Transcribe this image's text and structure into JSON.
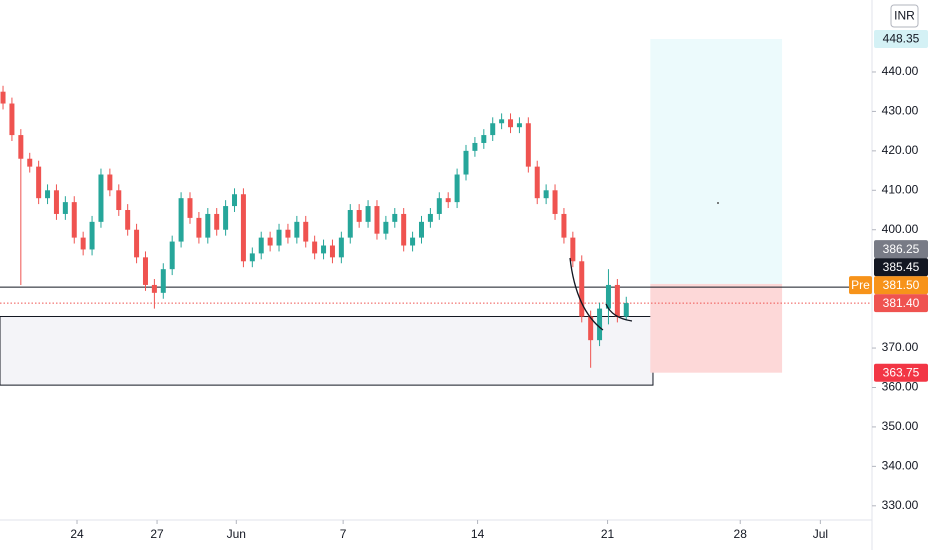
{
  "chart_data": {
    "type": "candlestick",
    "currency": "INR",
    "xlim": [
      -0.34,
      97.6
    ],
    "ylim": [
      326.4,
      458.25
    ],
    "xticks": [
      {
        "value": 8.31,
        "label": "24"
      },
      {
        "value": 17.3,
        "label": "27"
      },
      {
        "value": 26.2,
        "label": "Jun"
      },
      {
        "value": 38.2,
        "label": "7"
      },
      {
        "value": 53.3,
        "label": "14"
      },
      {
        "value": 67.9,
        "label": "21"
      },
      {
        "value": 82.8,
        "label": "28"
      },
      {
        "value": 91.8,
        "label": "Jul"
      }
    ],
    "yticks": [
      {
        "value": 330,
        "label": "330.00"
      },
      {
        "value": 340,
        "label": "340.00"
      },
      {
        "value": 350,
        "label": "350.00"
      },
      {
        "value": 360,
        "label": "360.00"
      },
      {
        "value": 370,
        "label": "370.00"
      },
      {
        "value": 400,
        "label": "400.00"
      },
      {
        "value": 410,
        "label": "410.00"
      },
      {
        "value": 420,
        "label": "420.00"
      },
      {
        "value": 430,
        "label": "430.00"
      },
      {
        "value": 440,
        "label": "440.00"
      }
    ],
    "up_color": "#26a69a",
    "down_color": "#ef5350",
    "open": [
      435,
      432,
      424,
      418,
      416,
      408,
      410,
      404,
      407,
      398,
      395,
      402,
      414,
      410,
      405,
      400,
      393,
      386,
      384,
      390,
      397,
      408,
      403,
      398,
      404,
      400,
      406,
      409,
      392,
      394,
      398,
      396,
      400,
      398,
      402,
      397,
      394,
      396,
      393,
      398,
      405,
      402,
      406,
      399,
      402,
      404,
      396,
      398,
      402,
      404,
      408,
      407,
      414,
      420,
      422,
      424,
      427,
      428,
      426,
      427,
      416,
      408,
      410,
      404,
      398,
      392,
      378,
      372,
      380,
      386,
      378
    ],
    "high": [
      436.5,
      433.5,
      425.5,
      419.5,
      417.5,
      411.5,
      411.5,
      408.5,
      408.5,
      399.5,
      403.5,
      415.5,
      415.5,
      411.5,
      406.5,
      401.5,
      394.5,
      387.5,
      391.5,
      398.5,
      409.5,
      409.5,
      404.5,
      405.5,
      405.5,
      407.5,
      410.5,
      410.5,
      395.5,
      399.5,
      399.5,
      401.5,
      401.5,
      403.5,
      403.5,
      398.5,
      397.5,
      397.5,
      399.5,
      406.5,
      406.5,
      407.5,
      407.5,
      403.5,
      405.5,
      405.5,
      399.5,
      403.5,
      405.5,
      409.5,
      409.5,
      415.5,
      421.5,
      423.5,
      425.5,
      428.5,
      429.5,
      429.5,
      428.5,
      428.5,
      417.5,
      411.5,
      411.5,
      405.5,
      399.5,
      393.5,
      379.5,
      381.5,
      390,
      387.5,
      383
    ],
    "low": [
      430.5,
      422.5,
      386,
      414.5,
      406.5,
      406.5,
      402.5,
      402.5,
      396.5,
      393.5,
      393.5,
      400.5,
      408.5,
      403.5,
      398.5,
      391.5,
      384.5,
      380,
      382.5,
      388.5,
      395.5,
      401.5,
      396.5,
      396.5,
      398.5,
      398.5,
      404.5,
      390.5,
      390.5,
      392.5,
      394.5,
      394.5,
      396.5,
      396.5,
      395.5,
      392.5,
      392.5,
      391.5,
      391.5,
      396.5,
      400.5,
      400.5,
      397.5,
      397.5,
      400.5,
      394.5,
      394.5,
      396.5,
      400.5,
      402.5,
      405.5,
      405.5,
      412.5,
      418.5,
      420.5,
      422.5,
      425.5,
      424.5,
      424.5,
      414.5,
      406.5,
      406.5,
      402.5,
      396.5,
      390.5,
      376.5,
      365,
      370.5,
      376,
      376.5,
      377
    ],
    "close": [
      432,
      424,
      418,
      416,
      408,
      410,
      404,
      407,
      398,
      395,
      402,
      414,
      410,
      405,
      400,
      393,
      386,
      384,
      390,
      397,
      408,
      403,
      398,
      404,
      400,
      406,
      409,
      392,
      394,
      398,
      396,
      400,
      398,
      402,
      397,
      394,
      396,
      393,
      398,
      405,
      402,
      406,
      399,
      402,
      404,
      396,
      398,
      402,
      404,
      408,
      407,
      414,
      420,
      422,
      424,
      427,
      428,
      426,
      427,
      416,
      408,
      410,
      404,
      398,
      392,
      378,
      372,
      380,
      386,
      378,
      381.4
    ],
    "box": {
      "x0": -0.34,
      "x1": 73.0,
      "top": 378,
      "bottom": 360.6,
      "fill": "#f4f4f8",
      "stroke": "#131722"
    },
    "position": {
      "x0": 72.7,
      "x1": 87.5,
      "target": 448.35,
      "entry": 386.25,
      "stop": 363.75,
      "profit_color": "#ecfafc",
      "loss_color": "#fdd8d8"
    },
    "lines": [
      {
        "value": 385.45,
        "color": "#131722",
        "style": "solid"
      },
      {
        "value": 381.4,
        "color": "#ef5350",
        "style": "dotted"
      }
    ],
    "price_tags": [
      {
        "value": 448.35,
        "label": "448.35",
        "bg": "#d4f1f5",
        "text_color": "#131722"
      },
      {
        "value": 386.25,
        "label": "386.25",
        "bg": "#787b86",
        "text_color": "#ffffff"
      },
      {
        "value": 385.45,
        "label": "385.45",
        "bg": "#131722",
        "text_color": "#ffffff"
      },
      {
        "value": 381.5,
        "label": "381.50",
        "prefix": "Pre",
        "bg": "#f7931a",
        "text_color": "#ffffff"
      },
      {
        "value": 381.4,
        "label": "381.40",
        "bg": "#ef5350",
        "text_color": "#ffffff"
      },
      {
        "value": 363.75,
        "label": "363.75",
        "bg": "#f23645",
        "text_color": "#ffffff"
      }
    ]
  }
}
